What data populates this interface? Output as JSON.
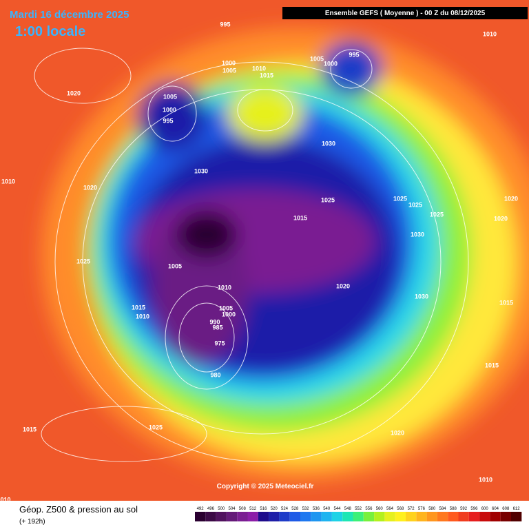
{
  "header": {
    "date": "Mardi 16 décembre 2025",
    "time": "1:00 locale",
    "model": "Ensemble GEFS  ( Moyenne )  -  00 Z du 08/12/2025"
  },
  "map": {
    "pressure_labels": [
      "995",
      "1010",
      "1000",
      "1005",
      "1005",
      "1000",
      "995",
      "1010",
      "1015",
      "1020",
      "1005",
      "1000",
      "995",
      "1030",
      "1030",
      "1010",
      "1020",
      "1025",
      "1025",
      "1025",
      "1020",
      "1015",
      "1025",
      "1020",
      "1030",
      "1025",
      "1005",
      "1010",
      "1020",
      "1030",
      "1015",
      "1015",
      "1005",
      "1010",
      "1000",
      "990",
      "985",
      "975",
      "1015",
      "980",
      "1015",
      "1025",
      "1020",
      "1010",
      "010"
    ],
    "copyright": "Copyright © 2025 Meteociel.fr"
  },
  "footer": {
    "title": "Géop. Z500 & pression au sol",
    "lead": "(+ 192h)"
  },
  "colorbar": {
    "labels": [
      "492",
      "496",
      "500",
      "504",
      "508",
      "512",
      "516",
      "520",
      "524",
      "528",
      "532",
      "536",
      "540",
      "544",
      "548",
      "552",
      "556",
      "560",
      "564",
      "568",
      "572",
      "576",
      "580",
      "584",
      "588",
      "592",
      "596",
      "600",
      "604",
      "608",
      "612"
    ],
    "colors": [
      "#2a0030",
      "#3c0a46",
      "#50125e",
      "#641a78",
      "#7a1e92",
      "#8c1ea8",
      "#1e0c8c",
      "#1e1ea8",
      "#1e3cc8",
      "#1e5ae6",
      "#1e78f0",
      "#1e96f0",
      "#1eb4f0",
      "#1ed2e6",
      "#1ee6b4",
      "#3cf078",
      "#78f03c",
      "#b4f01e",
      "#e6f01e",
      "#fff01e",
      "#ffd21e",
      "#ffb41e",
      "#ff961e",
      "#ff781e",
      "#ff5a1e",
      "#f03c1e",
      "#e61e1e",
      "#c80a0a",
      "#a00000",
      "#780000",
      "#500000"
    ]
  }
}
